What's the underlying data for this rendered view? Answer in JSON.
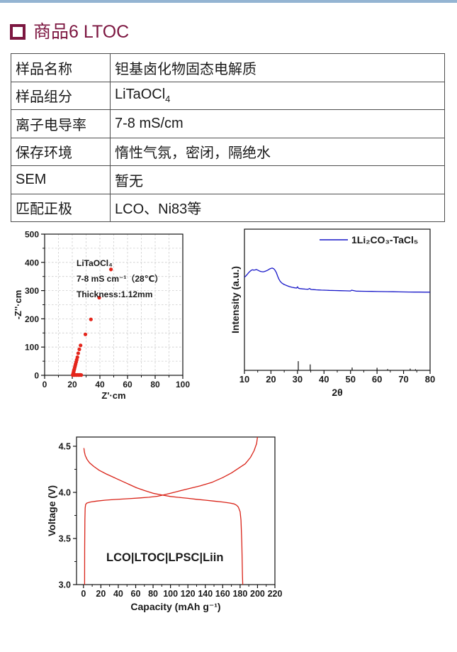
{
  "page": {
    "top_bar_color": "#94b4d2",
    "background": "#ffffff"
  },
  "header": {
    "title": "商品6 LTOC",
    "color": "#7c1640",
    "bullet_icon": "hollow-square"
  },
  "table": {
    "rows": [
      {
        "label": "样品名称",
        "value": "钽基卤化物固态电解质"
      },
      {
        "label": "样品组分",
        "value": "LiTaOCl",
        "value_sub": "4"
      },
      {
        "label": "离子电导率",
        "value": "7-8 mS/cm"
      },
      {
        "label": "保存环境",
        "value": "惰性气氛，密闭，隔绝水"
      },
      {
        "label": "SEM",
        "value": "暂无"
      },
      {
        "label": "匹配正极",
        "value": "LCO、Ni83等"
      }
    ]
  },
  "chart_data": [
    {
      "type": "scatter",
      "name": "nyquist-impedance-plot",
      "xlabel": "Z'·cm",
      "ylabel": "-Z''·cm",
      "xlim": [
        0,
        100
      ],
      "ylim": [
        0,
        500
      ],
      "xticks": [
        0,
        20,
        40,
        60,
        80,
        100
      ],
      "yticks": [
        0,
        100,
        200,
        300,
        400,
        500
      ],
      "xminor": [
        10,
        30,
        50,
        70,
        90
      ],
      "yminor": [
        50,
        150,
        250,
        350,
        450
      ],
      "grid": {
        "x": [
          10,
          20,
          30,
          40,
          50,
          60,
          70,
          80,
          90
        ],
        "y": [
          50,
          100,
          150,
          200,
          250,
          300,
          350,
          400,
          450
        ],
        "style": "dashed",
        "color": "#cccccc"
      },
      "color": "#e4251b",
      "annotation": [
        "LiTaOCl₄",
        "7-8 mS cm⁻¹（28℃）",
        "Thickness:1.12mm"
      ],
      "points": [
        [
          20.3,
          1
        ],
        [
          21,
          1.5
        ],
        [
          21.7,
          1
        ],
        [
          22.4,
          1.5
        ],
        [
          23.2,
          1
        ],
        [
          24,
          1.5
        ],
        [
          24.8,
          1
        ],
        [
          25.6,
          1.5
        ],
        [
          26.5,
          1
        ],
        [
          20.6,
          5
        ],
        [
          20.8,
          9
        ],
        [
          21.0,
          13
        ],
        [
          21.2,
          17
        ],
        [
          21.5,
          22
        ],
        [
          21.8,
          28
        ],
        [
          22.1,
          34
        ],
        [
          22.4,
          40
        ],
        [
          22.8,
          47
        ],
        [
          23.2,
          55
        ],
        [
          23.7,
          64
        ],
        [
          24.3,
          78
        ],
        [
          25.1,
          92
        ],
        [
          26,
          106
        ],
        [
          29.5,
          145
        ],
        [
          33.5,
          198
        ],
        [
          39.5,
          275
        ],
        [
          48,
          375
        ]
      ]
    },
    {
      "type": "line",
      "name": "xrd-pattern",
      "xlabel": "2θ",
      "ylabel": "Intensity (a.u.)",
      "xlim": [
        10,
        80
      ],
      "ylim": [
        0,
        1
      ],
      "xticks": [
        10,
        20,
        30,
        40,
        50,
        60,
        70,
        80
      ],
      "xminor": [
        15,
        25,
        35,
        45,
        55,
        65,
        75
      ],
      "legend": {
        "label": "1Li₂CO₃-TaCl₅"
      },
      "color": "#1616c8",
      "x": [
        10,
        10.5,
        11,
        11.5,
        12,
        12.5,
        13,
        13.5,
        14,
        14.5,
        15,
        15.5,
        16,
        16.5,
        17,
        17.5,
        18,
        18.5,
        19,
        19.5,
        20,
        20.5,
        21,
        21.5,
        22,
        22.5,
        23,
        23.5,
        24,
        24.5,
        25,
        25.5,
        26,
        27,
        28,
        29,
        29.7,
        30,
        30.4,
        31,
        32,
        33,
        34,
        34.6,
        35,
        35.4,
        36,
        37,
        38,
        39,
        40,
        41,
        42,
        44,
        46,
        48,
        50,
        50.4,
        52,
        54,
        56,
        58,
        60,
        62,
        64,
        66,
        68,
        70,
        72,
        74,
        76,
        78,
        80
      ],
      "y": [
        0.66,
        0.668,
        0.678,
        0.69,
        0.7,
        0.708,
        0.712,
        0.71,
        0.711,
        0.714,
        0.71,
        0.705,
        0.701,
        0.699,
        0.698,
        0.7,
        0.703,
        0.707,
        0.712,
        0.718,
        0.722,
        0.724,
        0.72,
        0.71,
        0.694,
        0.668,
        0.645,
        0.63,
        0.62,
        0.613,
        0.608,
        0.604,
        0.6,
        0.593,
        0.588,
        0.5845,
        0.583,
        0.592,
        0.581,
        0.579,
        0.577,
        0.5755,
        0.5745,
        0.58,
        0.5735,
        0.5725,
        0.572,
        0.5705,
        0.5695,
        0.5685,
        0.568,
        0.5672,
        0.5665,
        0.5655,
        0.5645,
        0.5635,
        0.5625,
        0.568,
        0.5615,
        0.5605,
        0.56,
        0.5592,
        0.5585,
        0.5578,
        0.5572,
        0.5566,
        0.556,
        0.5555,
        0.555,
        0.5545,
        0.5542,
        0.554,
        0.5538
      ],
      "ref_peaks": [
        [
          30.3,
          0.065
        ],
        [
          34.8,
          0.042
        ],
        [
          50.6,
          0.02
        ],
        [
          60,
          0.018
        ],
        [
          64,
          0.009
        ],
        [
          72.5,
          0.012
        ],
        [
          74.5,
          0.008
        ]
      ]
    },
    {
      "type": "line",
      "name": "charge-discharge-curves",
      "xlabel": "Capacity (mAh g⁻¹)",
      "ylabel": "Voltage (V)",
      "xlim": [
        -8,
        220
      ],
      "ylim": [
        3.0,
        4.6
      ],
      "xticks": [
        0,
        20,
        40,
        60,
        80,
        100,
        120,
        140,
        160,
        180,
        200,
        220
      ],
      "yticks": [
        3.0,
        3.5,
        4.0,
        4.5
      ],
      "yticklabels": [
        "3.0",
        "3.5",
        "4.0",
        "4.5"
      ],
      "xminor": [
        10,
        30,
        50,
        70,
        90,
        110,
        130,
        150,
        170,
        190,
        210
      ],
      "yminor": [
        3.25,
        3.75,
        4.25
      ],
      "color": "#d92318",
      "annotation": [
        "LCO|LTOC|LPSC|Liin"
      ],
      "series": [
        {
          "name": "charge",
          "points": [
            [
              1.3,
              3.0
            ],
            [
              1.4,
              3.4
            ],
            [
              1.6,
              3.7
            ],
            [
              1.9,
              3.83
            ],
            [
              2.5,
              3.87
            ],
            [
              4,
              3.885
            ],
            [
              8,
              3.895
            ],
            [
              15,
              3.905
            ],
            [
              25,
              3.915
            ],
            [
              35,
              3.922
            ],
            [
              45,
              3.928
            ],
            [
              55,
              3.934
            ],
            [
              65,
              3.94
            ],
            [
              75,
              3.947
            ],
            [
              85,
              3.958
            ],
            [
              91,
              3.97
            ],
            [
              100,
              3.99
            ],
            [
              108,
              4.01
            ],
            [
              121,
              4.04
            ],
            [
              134,
              4.07
            ],
            [
              148,
              4.11
            ],
            [
              160,
              4.16
            ],
            [
              170,
              4.21
            ],
            [
              178,
              4.26
            ],
            [
              186,
              4.31
            ],
            [
              192,
              4.38
            ],
            [
              196,
              4.45
            ],
            [
              199,
              4.53
            ],
            [
              200,
              4.6
            ]
          ]
        },
        {
          "name": "discharge",
          "points": [
            [
              0.5,
              4.48
            ],
            [
              1,
              4.44
            ],
            [
              2,
              4.4
            ],
            [
              4,
              4.36
            ],
            [
              7,
              4.32
            ],
            [
              12,
              4.28
            ],
            [
              18,
              4.24
            ],
            [
              26,
              4.2
            ],
            [
              33,
              4.17
            ],
            [
              40,
              4.14
            ],
            [
              47,
              4.11
            ],
            [
              54,
              4.08
            ],
            [
              61,
              4.05
            ],
            [
              70,
              4.02
            ],
            [
              80,
              3.99
            ],
            [
              91,
              3.97
            ],
            [
              100,
              3.955
            ],
            [
              110,
              3.945
            ],
            [
              120,
              3.935
            ],
            [
              130,
              3.925
            ],
            [
              140,
              3.915
            ],
            [
              150,
              3.905
            ],
            [
              160,
              3.895
            ],
            [
              168,
              3.885
            ],
            [
              173,
              3.875
            ],
            [
              176,
              3.86
            ],
            [
              178,
              3.84
            ],
            [
              180,
              3.79
            ],
            [
              181,
              3.7
            ],
            [
              182,
              3.45
            ],
            [
              182.7,
              3.1
            ],
            [
              183,
              3.0
            ]
          ]
        }
      ]
    }
  ]
}
